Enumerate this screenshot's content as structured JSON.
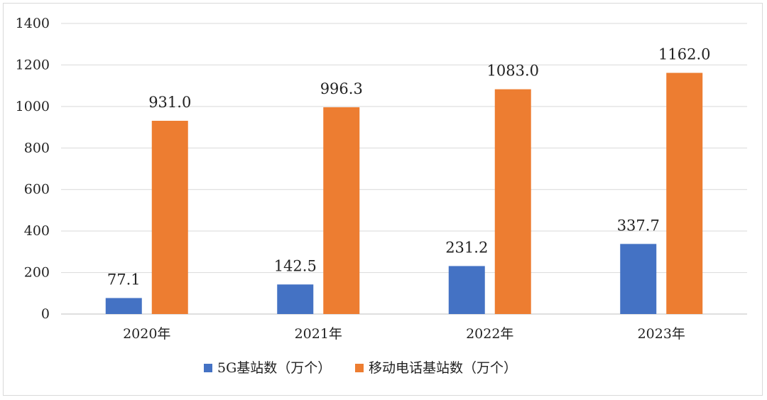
{
  "chart_data": {
    "type": "bar",
    "title": "",
    "xlabel": "",
    "ylabel": "",
    "categories": [
      "2020年",
      "2021年",
      "2022年",
      "2023年"
    ],
    "series": [
      {
        "name": "5G基站数（万个）",
        "color": "#4472C4",
        "values": [
          77.1,
          142.5,
          231.2,
          337.7
        ],
        "labels": [
          "77.1",
          "142.5",
          "231.2",
          "337.7"
        ]
      },
      {
        "name": "移动电话基站数（万个）",
        "color": "#ED7D31",
        "values": [
          931.0,
          996.3,
          1083.0,
          1162.0
        ],
        "labels": [
          "931.0",
          "996.3",
          "1083.0",
          "1162.0"
        ]
      }
    ],
    "ylim": [
      0,
      1400
    ],
    "yticks": [
      0,
      200,
      400,
      600,
      800,
      1000,
      1200,
      1400
    ],
    "ytick_labels": [
      "0",
      "200",
      "400",
      "600",
      "800",
      "1000",
      "1200",
      "1400"
    ],
    "grid": true,
    "legend_position": "bottom"
  }
}
